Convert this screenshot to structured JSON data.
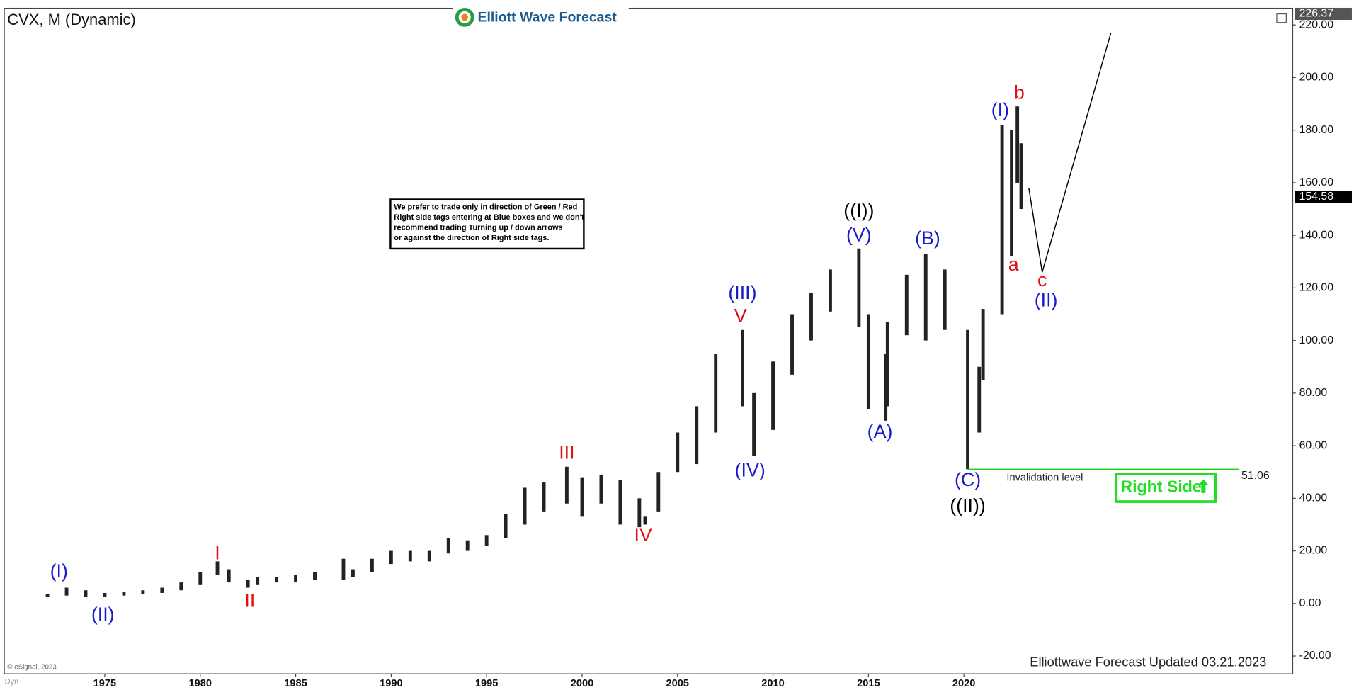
{
  "chart_data": {
    "type": "ohlc",
    "title": "CVX, M (Dynamic)",
    "logo": "Elliott Wave Forecast",
    "note": [
      "We prefer to trade only in direction of Green / Red",
      "Right side tags entering at Blue boxes and we don't",
      "recommend trading Turning up / down arrows",
      "or against the direction of Right side tags."
    ],
    "footer": "Elliottwave Forecast Updated 03.21.2023",
    "copyright": "© eSignal, 2023",
    "corner_label": "Dyn",
    "right_side": "Right Side",
    "xlim": [
      1969.76,
      2037.2
    ],
    "ylim": [
      -26.6,
      226.2
    ],
    "xticks": [
      1975,
      1980,
      1985,
      1990,
      1995,
      2000,
      2005,
      2010,
      2015,
      2020
    ],
    "yticks": [
      {
        "value": -20,
        "label": "-20.00"
      },
      {
        "value": 0,
        "label": "0.00"
      },
      {
        "value": 20,
        "label": "20.00"
      },
      {
        "value": 40,
        "label": "40.00"
      },
      {
        "value": 60,
        "label": "60.00"
      },
      {
        "value": 80,
        "label": "80.00"
      },
      {
        "value": 100,
        "label": "100.00"
      },
      {
        "value": 120,
        "label": "120.00"
      },
      {
        "value": 140,
        "label": "140.00"
      },
      {
        "value": 160,
        "label": "160.00"
      },
      {
        "value": 180,
        "label": "180.00"
      },
      {
        "value": 200,
        "label": "200.00"
      },
      {
        "value": 220,
        "label": "220.00"
      }
    ],
    "price_tags": [
      226.37,
      154.58
    ],
    "series": [
      {
        "name": "CVX",
        "color": "#222222",
        "x": [
          1972,
          1973,
          1974,
          1975,
          1976,
          1977,
          1978,
          1979,
          1980,
          1980.9,
          1981.5,
          1982.5,
          1983,
          1984,
          1985,
          1986,
          1987.5,
          1988,
          1989,
          1990,
          1991,
          1992,
          1993,
          1994,
          1995,
          1996,
          1997,
          1998,
          1999.2,
          2000,
          2001,
          2002,
          2003,
          2003.3,
          2004,
          2005,
          2006,
          2007,
          2008.4,
          2009,
          2010,
          2011,
          2012,
          2013,
          2014.5,
          2015,
          2015.9,
          2016,
          2017,
          2018,
          2019,
          2020.2,
          2020.8,
          2021,
          2022,
          2022.5,
          2022.8,
          2023
        ],
        "high": [
          3.5,
          6,
          5,
          4,
          4.5,
          5,
          6,
          8,
          12,
          16,
          13,
          9,
          10,
          10,
          11,
          12,
          17,
          13,
          17,
          20,
          20,
          20,
          25,
          24,
          26,
          34,
          44,
          46,
          52,
          48,
          49,
          47,
          40,
          33,
          50,
          65,
          75,
          95,
          104,
          80,
          92,
          110,
          118,
          127,
          135,
          110,
          95,
          107,
          125,
          133,
          127,
          104,
          90,
          112,
          182,
          180,
          189,
          175
        ],
        "low": [
          2.5,
          3,
          2.5,
          2.5,
          3,
          3.5,
          4,
          5,
          7,
          11,
          8,
          6,
          7,
          8,
          8,
          9,
          9,
          10,
          12,
          15,
          16,
          16,
          19,
          20,
          22,
          25,
          30,
          35,
          38,
          33,
          38,
          30,
          29,
          30,
          35,
          50,
          53,
          65,
          75,
          56,
          66,
          87,
          100,
          111,
          105,
          74,
          69.5,
          75,
          102,
          100,
          104,
          51.06,
          65,
          85,
          110,
          132,
          160,
          150
        ]
      }
    ],
    "projection": {
      "color": "#000000",
      "x": [
        2023.4,
        2024.1,
        2027.7
      ],
      "values": [
        158,
        126,
        217
      ]
    },
    "invalidation": {
      "label": "Invalidation level",
      "value": 51.06,
      "color": "#00cc00",
      "x": [
        2020.2,
        2034.4
      ]
    },
    "wave_labels": [
      {
        "text": "(I)",
        "color": "#1a1acc",
        "x": 1972.6,
        "y": 11.8
      },
      {
        "text": "(II)",
        "color": "#1a1acc",
        "x": 1974.9,
        "y": -4.6
      },
      {
        "text": "I",
        "color": "#dd1111",
        "x": 1980.9,
        "y": 18.7
      },
      {
        "text": "II",
        "color": "#dd1111",
        "x": 1982.6,
        "y": 0.7
      },
      {
        "text": "III",
        "color": "#dd1111",
        "x": 1999.2,
        "y": 57
      },
      {
        "text": "IV",
        "color": "#dd1111",
        "x": 2003.2,
        "y": 25.6
      },
      {
        "text": "V",
        "color": "#dd1111",
        "x": 2008.3,
        "y": 109
      },
      {
        "text": "(III)",
        "color": "#1a1acc",
        "x": 2008.4,
        "y": 117.7
      },
      {
        "text": "(IV)",
        "color": "#1a1acc",
        "x": 2008.8,
        "y": 50.2
      },
      {
        "text": "((I))",
        "color": "#000000",
        "x": 2014.5,
        "y": 148.9
      },
      {
        "text": "(V)",
        "color": "#1a1acc",
        "x": 2014.5,
        "y": 139.7
      },
      {
        "text": "(A)",
        "color": "#1a1acc",
        "x": 2015.6,
        "y": 64.9
      },
      {
        "text": "(B)",
        "color": "#1a1acc",
        "x": 2018.1,
        "y": 138.4
      },
      {
        "text": "(C)",
        "color": "#1a1acc",
        "x": 2020.2,
        "y": 46.6
      },
      {
        "text": "((II))",
        "color": "#000000",
        "x": 2020.2,
        "y": 36.7
      },
      {
        "text": "(I)",
        "color": "#1a1acc",
        "x": 2021.9,
        "y": 187.2
      },
      {
        "text": "b",
        "color": "#dd1111",
        "x": 2022.9,
        "y": 193.8
      },
      {
        "text": "a",
        "color": "#dd1111",
        "x": 2022.6,
        "y": 128.5
      },
      {
        "text": "c",
        "color": "#dd1111",
        "x": 2024.1,
        "y": 122.6
      },
      {
        "text": "(II)",
        "color": "#1a1acc",
        "x": 2024.3,
        "y": 114.8
      }
    ]
  }
}
